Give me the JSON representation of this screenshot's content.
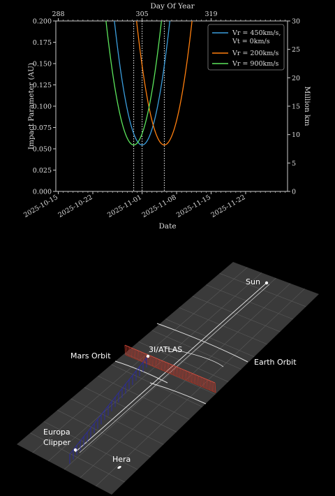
{
  "chart_data": [
    {
      "type": "line",
      "xlabel": "Date",
      "ylabel": "Impact Parameter (AU)",
      "ylabel_right": "Million km",
      "top_axis_label": "Day Of Year",
      "x_tick_labels": [
        "2025-10-15",
        "2025-10-22",
        "2025-11-01",
        "2025-11-08",
        "2025-11-15",
        "2025-11-22"
      ],
      "x_tick_doy": [
        288,
        295,
        305,
        312,
        319,
        326
      ],
      "top_tick_labels": [
        "288",
        "305",
        "319"
      ],
      "top_tick_doy": [
        288,
        305,
        319
      ],
      "xlim_doy": [
        287.5,
        334.5
      ],
      "ylim": [
        0.0,
        0.2
      ],
      "y_tick_labels": [
        "0.000",
        "0.025",
        "0.050",
        "0.075",
        "0.100",
        "0.125",
        "0.150",
        "0.175",
        "0.200"
      ],
      "y_ticks": [
        0.0,
        0.025,
        0.05,
        0.075,
        0.1,
        0.125,
        0.15,
        0.175,
        0.2
      ],
      "y2lim": [
        0,
        30
      ],
      "y2_ticks": [
        0,
        5,
        10,
        15,
        20,
        25,
        30
      ],
      "y2_tick_labels": [
        "0",
        "5",
        "10",
        "15",
        "20",
        "25",
        "30"
      ],
      "legend_position": "top-right",
      "series": [
        {
          "name": "Vr = 450km/s, Vt = 0km/s",
          "color": "#3b9ede",
          "min_doy": 305.0,
          "min_value": 0.0545,
          "curvature": 0.0046
        },
        {
          "name": "Vr = 200km/s",
          "color": "#ff7f0e",
          "min_doy": 309.5,
          "min_value": 0.0545,
          "curvature": 0.0046
        },
        {
          "name": "Vr = 900km/s",
          "color": "#5ce65c",
          "min_doy": 303.3,
          "min_value": 0.0545,
          "curvature": 0.0046
        }
      ],
      "vlines_doy": [
        303.3,
        305.0,
        309.5
      ],
      "grid": false
    },
    {
      "type": "diagram-3d",
      "labels": {
        "sun": "Sun",
        "earth_orbit": "Earth Orbit",
        "mars_orbit": "Mars Orbit",
        "atlas": "3I/ATLAS",
        "europa": [
          "Europa",
          "Clipper"
        ],
        "hera": "Hera"
      },
      "colors": {
        "comet_trail": "#c0392b",
        "spacecraft_trail": "#2a2aa8",
        "grid": "#555555",
        "plane": "#3a3a3a"
      }
    }
  ]
}
